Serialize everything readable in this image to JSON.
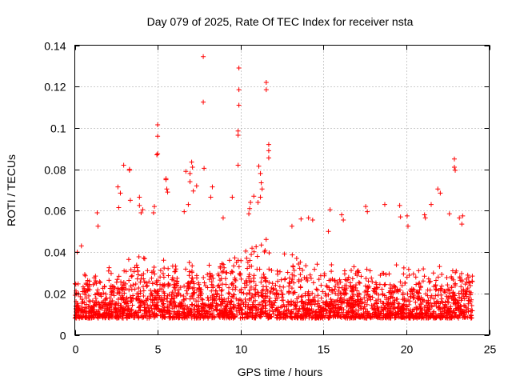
{
  "chart_data": {
    "type": "scatter",
    "title": "Day 079 of 2025, Rate Of TEC Index for receiver nsta",
    "xlabel": "GPS time / hours",
    "ylabel": "ROTI / TECUs",
    "xlim": [
      0,
      25
    ],
    "ylim": [
      0,
      0.14
    ],
    "xticks": [
      0,
      5,
      10,
      15,
      20,
      25
    ],
    "xtick_labels": [
      "0",
      "5",
      "10",
      "15",
      "20",
      "25"
    ],
    "yticks": [
      0,
      0.02,
      0.04,
      0.06,
      0.08,
      0.1,
      0.12,
      0.14
    ],
    "ytick_labels": [
      "0",
      "0.02",
      "0.04",
      "0.06",
      "0.08",
      "0.1",
      "0.12",
      "0.14"
    ],
    "grid": true,
    "marker": "+",
    "color": "#ff0000",
    "data_extent_x": [
      0,
      24
    ],
    "typical_range": [
      0.008,
      0.035
    ],
    "series": [
      {
        "name": "ROTI",
        "x": [
          7.75,
          7.75,
          9.9,
          9.9,
          9.9,
          9.85,
          11.55,
          11.55,
          5.0,
          5.0,
          5.0,
          9.85,
          9.85,
          4.95,
          11.7,
          11.7,
          11.7,
          22.9,
          22.9,
          22.95,
          3.3,
          3.3,
          2.95,
          5.5,
          5.5,
          6.7,
          6.95,
          6.95,
          7.05,
          7.1,
          7.8,
          5.55,
          5.6,
          11.1,
          11.2,
          11.25,
          11.3,
          11.2,
          11.05,
          10.8,
          10.6,
          10.55,
          10.5,
          3.9,
          3.9,
          4.0,
          4.1,
          2.75,
          2.6,
          2.65,
          9.5,
          8.3,
          8.2,
          7.35,
          7.15,
          6.85,
          6.6,
          4.75,
          4.8,
          1.35,
          1.4,
          0.4,
          0.15,
          3.35,
          13.65,
          14.1,
          14.35,
          15.3,
          15.4,
          17.55,
          17.65,
          18.7,
          19.6,
          19.65,
          20.05,
          20.1,
          21.5,
          21.9,
          22.05,
          22.6,
          23.2,
          23.35,
          23.4,
          8.95,
          13.1,
          16.1,
          16.2,
          21.1,
          21.15
        ],
        "y": [
          0.1345,
          0.1125,
          0.129,
          0.1185,
          0.111,
          0.0985,
          0.122,
          0.1185,
          0.1015,
          0.096,
          0.0875,
          0.0965,
          0.082,
          0.087,
          0.092,
          0.089,
          0.0855,
          0.085,
          0.081,
          0.0795,
          0.08,
          0.0795,
          0.082,
          0.0755,
          0.075,
          0.079,
          0.078,
          0.074,
          0.0835,
          0.081,
          0.0805,
          0.0705,
          0.069,
          0.0815,
          0.078,
          0.0735,
          0.0705,
          0.0665,
          0.064,
          0.067,
          0.064,
          0.061,
          0.0585,
          0.0665,
          0.0625,
          0.059,
          0.0605,
          0.0685,
          0.0715,
          0.0615,
          0.0665,
          0.0715,
          0.0665,
          0.072,
          0.0695,
          0.063,
          0.0595,
          0.059,
          0.062,
          0.059,
          0.0525,
          0.043,
          0.04,
          0.065,
          0.056,
          0.0565,
          0.0555,
          0.05,
          0.0605,
          0.062,
          0.0595,
          0.063,
          0.0625,
          0.057,
          0.0575,
          0.0525,
          0.063,
          0.0705,
          0.0685,
          0.0585,
          0.0565,
          0.0535,
          0.0575,
          0.0565,
          0.0525,
          0.058,
          0.0555,
          0.058,
          0.0565
        ]
      }
    ]
  }
}
